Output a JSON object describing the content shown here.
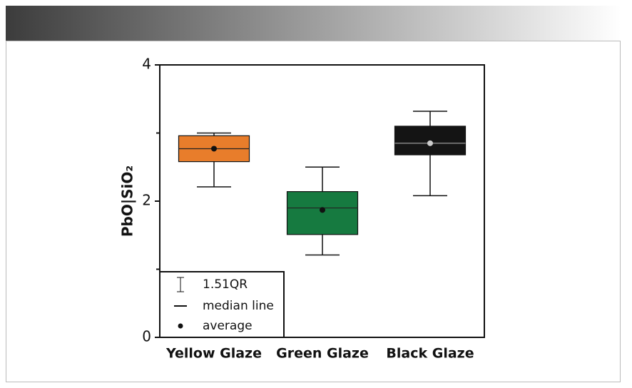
{
  "chart_data": {
    "type": "box",
    "y_label": "PbO|SiO₂",
    "categories": [
      "Yellow Glaze",
      "Green Glaze",
      "Black Glaze"
    ],
    "whisker_low": [
      2.21,
      1.21,
      2.08
    ],
    "q1": [
      2.58,
      1.51,
      2.68
    ],
    "median": [
      2.77,
      1.9,
      2.85
    ],
    "q3": [
      2.96,
      2.14,
      3.1
    ],
    "whisker_high": [
      3.0,
      2.5,
      3.32
    ],
    "mean": [
      2.77,
      1.87,
      2.85
    ],
    "colors": [
      "#e87d2b",
      "#167a40",
      "#141414"
    ],
    "ylim": [
      0,
      4
    ],
    "yticks": [
      0,
      2,
      4
    ],
    "minor_yticks": [
      1,
      3
    ],
    "legend": {
      "position": "lower left",
      "items": [
        "1.51QR",
        "median line",
        "average"
      ]
    }
  }
}
